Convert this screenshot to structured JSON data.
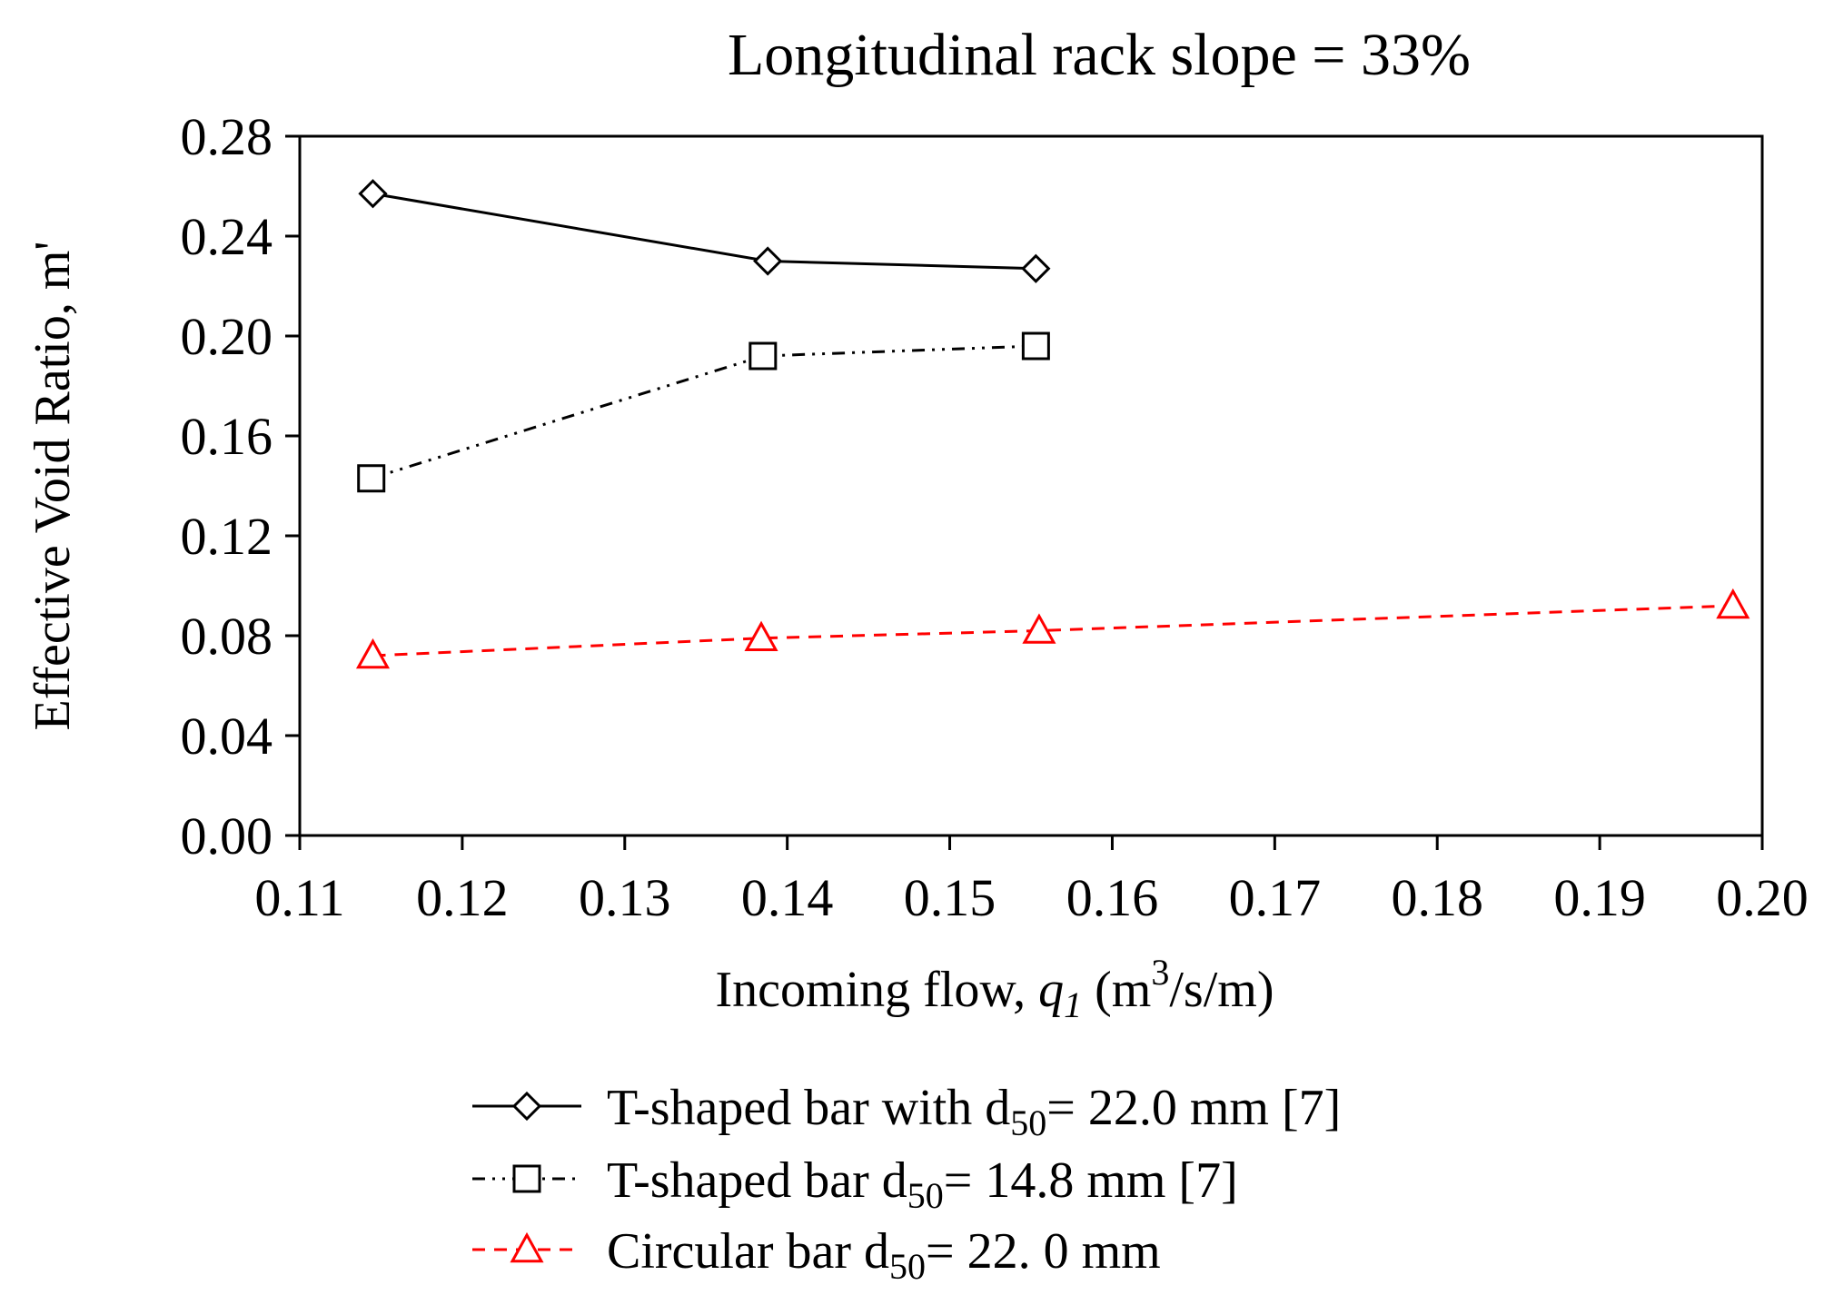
{
  "chart_data": {
    "type": "line",
    "title": "Longitudinal  rack slope = 33%",
    "xlabel": {
      "prefix": "Incoming  flow,  ",
      "var": "q",
      "var_sub": "1",
      "unit_open": " (m",
      "unit_sup": "3",
      "unit_close": "/s/m)"
    },
    "ylabel": "Effective  Void Ratio,  m'",
    "xlim": [
      0.11,
      0.2
    ],
    "ylim": [
      0.0,
      0.28
    ],
    "xticks": [
      "0.11",
      "0.12",
      "0.13",
      "0.14",
      "0.15",
      "0.16",
      "0.17",
      "0.18",
      "0.19",
      "0.20"
    ],
    "yticks": [
      "0.00",
      "0.04",
      "0.08",
      "0.12",
      "0.16",
      "0.20",
      "0.24",
      "0.28"
    ],
    "grid": false,
    "legend_position": "bottom",
    "series": [
      {
        "name": "T-shaped bar with d50=  22.0 mm [7]",
        "label_main": "T-shaped bar with ",
        "label_d": "d",
        "label_sub": "50",
        "label_rest": "=  22.0 mm [7]",
        "marker": "diamond",
        "line": "solid",
        "color": "#000000",
        "x": [
          0.1145,
          0.1388,
          0.1553
        ],
        "y": [
          0.257,
          0.23,
          0.227
        ]
      },
      {
        "name": "T-shaped bar  d50=  14.8 mm [7]",
        "label_main": "T-shaped bar  ",
        "label_d": "d",
        "label_sub": "50",
        "label_rest": "=  14.8 mm [7]",
        "marker": "square",
        "line": "dashdot",
        "color": "#000000",
        "x": [
          0.1144,
          0.1385,
          0.1553
        ],
        "y": [
          0.143,
          0.192,
          0.196
        ]
      },
      {
        "name": "Circular bar d50=  22. 0 mm",
        "label_main": "Circular bar ",
        "label_d": "d",
        "label_sub": "50",
        "label_rest": "=  22. 0 mm",
        "marker": "triangle",
        "line": "dashed",
        "color": "#ff0000",
        "x": [
          0.1145,
          0.1384,
          0.1555,
          0.1982
        ],
        "y": [
          0.072,
          0.079,
          0.082,
          0.092
        ]
      }
    ]
  }
}
